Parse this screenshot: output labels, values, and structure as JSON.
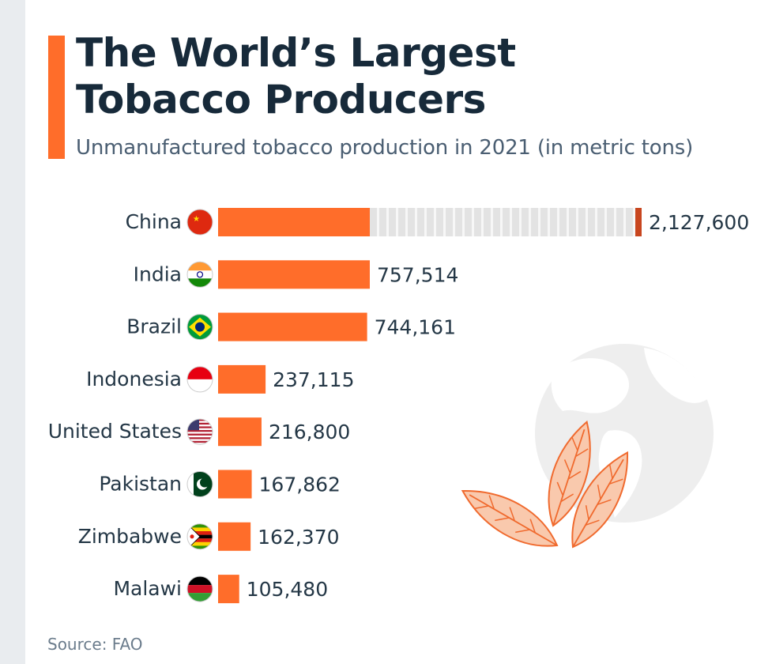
{
  "header": {
    "title_line1": "The World’s Largest",
    "title_line2": "Tobacco Producers",
    "subtitle": "Unmanufactured tobacco production in 2021 (in metric tons)"
  },
  "source": "Source: FAO",
  "colors": {
    "accent": "#ff6d2a",
    "bar": "#ff6d2a",
    "break_fill": "#e3e3e3",
    "break_end": "#c8461f",
    "title": "#172a3a",
    "text": "#243746"
  },
  "chart_data": {
    "type": "bar",
    "orientation": "horizontal",
    "categories": [
      "China",
      "India",
      "Brazil",
      "Indonesia",
      "United States",
      "Pakistan",
      "Zimbabwe",
      "Malawi"
    ],
    "values": [
      2127600,
      757514,
      744161,
      237115,
      216800,
      167862,
      162370,
      105480
    ],
    "value_labels": [
      "2,127,600",
      "757,514",
      "744,161",
      "237,115",
      "216,800",
      "167,862",
      "162,370",
      "105,480"
    ],
    "flags": [
      "china-flag-icon",
      "india-flag-icon",
      "brazil-flag-icon",
      "indonesia-flag-icon",
      "united-states-flag-icon",
      "pakistan-flag-icon",
      "zimbabwe-flag-icon",
      "malawi-flag-icon"
    ],
    "axis_break": "first bar truncated",
    "grid": false,
    "legend": "none"
  }
}
